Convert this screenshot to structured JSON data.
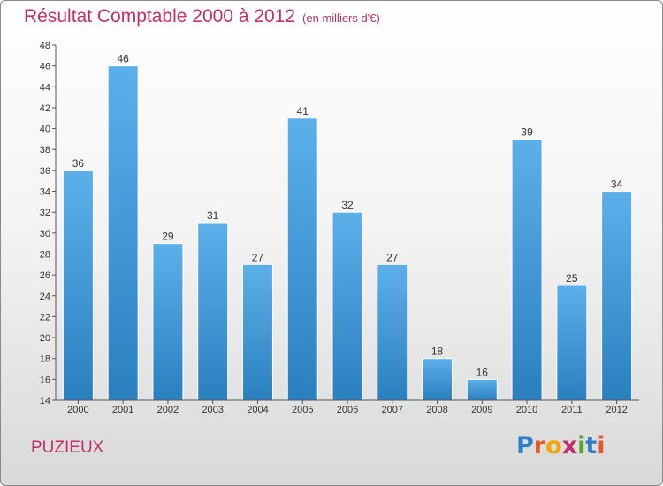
{
  "title": "Résultat Comptable 2000 à 2012",
  "title_unit": "(en milliers d'€)",
  "commune": "PUZIEUX",
  "logo": {
    "letters": [
      "P",
      "r",
      "o",
      "x",
      "i",
      "t",
      "i"
    ],
    "colors": [
      "#2f7fc8",
      "#e8572a",
      "#f0a800",
      "#c0306a",
      "#5aa02c",
      "#2f7fc8",
      "#e8572a"
    ]
  },
  "colors": {
    "title": "#c0306a",
    "bar_top": "#5cb0ea",
    "bar_bottom": "#2a7fbf"
  },
  "chart_data": {
    "type": "bar",
    "title": "Résultat Comptable 2000 à 2012",
    "ylabel": "en milliers d'€",
    "xlabel": "",
    "categories": [
      "2000",
      "2001",
      "2002",
      "2003",
      "2004",
      "2005",
      "2006",
      "2007",
      "2008",
      "2009",
      "2010",
      "2011",
      "2012"
    ],
    "values": [
      36,
      46,
      29,
      31,
      27,
      41,
      32,
      27,
      18,
      16,
      39,
      25,
      34
    ],
    "ylim": [
      14,
      48
    ],
    "yticks": [
      14,
      16,
      18,
      20,
      22,
      24,
      26,
      28,
      30,
      32,
      34,
      36,
      38,
      40,
      42,
      44,
      46,
      48
    ],
    "grid": false,
    "legend": "none"
  }
}
